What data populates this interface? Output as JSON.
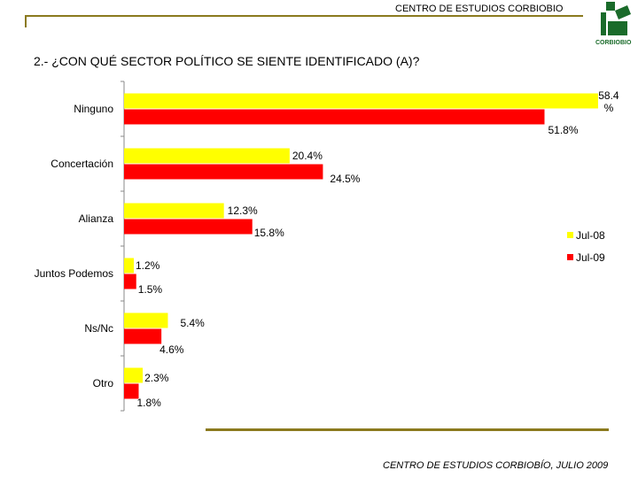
{
  "header": {
    "org": "CENTRO DE ESTUDIOS CORBIOBIO",
    "logo_text": "CORBIOBIO"
  },
  "title": "2.- ¿CON QUÉ SECTOR POLÍTICO SE SIENTE IDENTIFICADO (A)?",
  "footer": "CENTRO DE ESTUDIOS CORBIOBÍO, JULIO 2009",
  "colors": {
    "series_1": "#ffff00",
    "series_2": "#ff0000",
    "rule": "#8b7a1e",
    "logo": "#1a6b2a"
  },
  "chart_data": {
    "type": "bar",
    "orientation": "horizontal",
    "categories": [
      "Ninguno",
      "Concertación",
      "Alianza",
      "Juntos Podemos",
      "Ns/Nc",
      "Otro"
    ],
    "series": [
      {
        "name": "Jul-08",
        "values": [
          58.4,
          20.4,
          12.3,
          1.2,
          5.4,
          2.3
        ],
        "labels": [
          "58.4 %",
          "20.4%",
          "12.3%",
          "1.2%",
          "5.4%",
          "2.3%"
        ]
      },
      {
        "name": "Jul-09",
        "values": [
          51.8,
          24.5,
          15.8,
          1.5,
          4.6,
          1.8
        ],
        "labels": [
          "51.8%",
          "24.5%",
          "15.8%",
          "1.5%",
          "4.6%",
          "1.8%"
        ]
      }
    ],
    "xlim": [
      0,
      60
    ],
    "legend": "right"
  }
}
